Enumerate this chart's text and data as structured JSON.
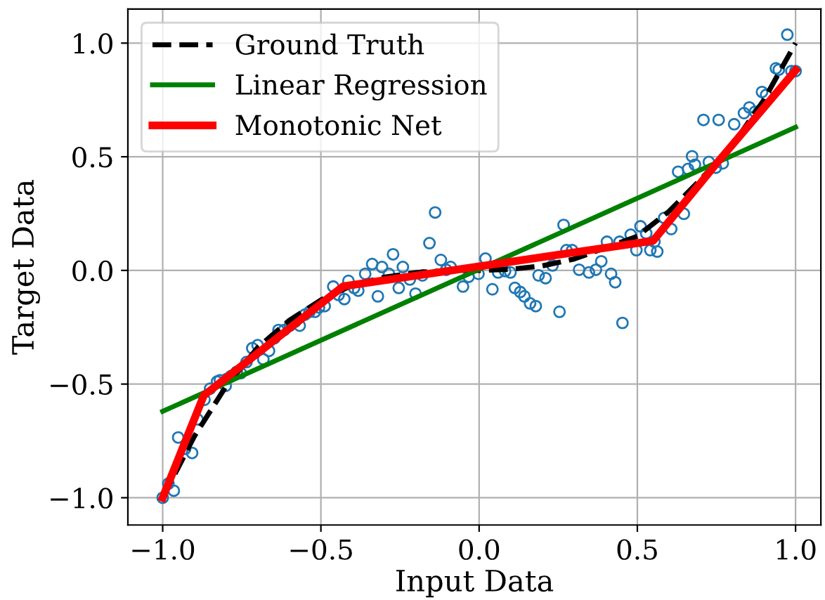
{
  "chart_data": {
    "type": "line",
    "xlabel": "Input Data",
    "ylabel": "Target Data",
    "xlim": [
      -1.11,
      1.08
    ],
    "ylim": [
      -1.12,
      1.15
    ],
    "xticks": [
      {
        "value": -1.0,
        "label": "−1.0"
      },
      {
        "value": -0.5,
        "label": "−0.5"
      },
      {
        "value": 0.0,
        "label": "0.0"
      },
      {
        "value": 0.5,
        "label": "0.5"
      },
      {
        "value": 1.0,
        "label": "1.0"
      }
    ],
    "yticks": [
      {
        "value": -1.0,
        "label": "−1.0"
      },
      {
        "value": -0.5,
        "label": "−0.5"
      },
      {
        "value": 0.0,
        "label": "0.0"
      },
      {
        "value": 0.5,
        "label": "0.5"
      },
      {
        "value": 1.0,
        "label": "1.0"
      }
    ],
    "grid": true,
    "legend": "top left",
    "series": [
      {
        "type": "scatter",
        "marker": "circle",
        "color": "#1f77b4",
        "x": [
          -1.0,
          -0.982,
          -0.965,
          -0.951,
          -0.929,
          -0.907,
          -0.89,
          -0.868,
          -0.85,
          -0.828,
          -0.819,
          -0.801,
          -0.797,
          -0.784,
          -0.766,
          -0.753,
          -0.735,
          -0.717,
          -0.7,
          -0.682,
          -0.664,
          -0.647,
          -0.634,
          -0.616,
          -0.598,
          -0.581,
          -0.567,
          -0.55,
          -0.536,
          -0.519,
          -0.506,
          -0.488,
          -0.461,
          -0.444,
          -0.426,
          -0.413,
          -0.395,
          -0.382,
          -0.36,
          -0.338,
          -0.32,
          -0.307,
          -0.285,
          -0.272,
          -0.254,
          -0.241,
          -0.219,
          -0.201,
          -0.179,
          -0.157,
          -0.139,
          -0.121,
          -0.104,
          -0.09,
          -0.051,
          -0.033,
          -0.002,
          0.02,
          0.042,
          0.06,
          0.082,
          0.099,
          0.113,
          0.13,
          0.143,
          0.161,
          0.179,
          0.188,
          0.21,
          0.232,
          0.254,
          0.267,
          0.276,
          0.294,
          0.316,
          0.347,
          0.369,
          0.386,
          0.404,
          0.417,
          0.43,
          0.444,
          0.453,
          0.479,
          0.497,
          0.51,
          0.528,
          0.541,
          0.554,
          0.563,
          0.585,
          0.607,
          0.629,
          0.647,
          0.66,
          0.673,
          0.682,
          0.709,
          0.726,
          0.748,
          0.757,
          0.77,
          0.806,
          0.837,
          0.854,
          0.872,
          0.894,
          0.907,
          0.938,
          0.947,
          0.974,
          0.987,
          1.0
        ],
        "values": [
          -1.0,
          -0.938,
          -0.969,
          -0.735,
          -0.785,
          -0.803,
          -0.655,
          -0.569,
          -0.52,
          -0.489,
          -0.483,
          -0.508,
          -0.477,
          -0.465,
          -0.446,
          -0.452,
          -0.403,
          -0.342,
          -0.329,
          -0.391,
          -0.354,
          -0.298,
          -0.262,
          -0.262,
          -0.243,
          -0.225,
          -0.243,
          -0.194,
          -0.182,
          -0.182,
          -0.163,
          -0.157,
          -0.071,
          -0.108,
          -0.126,
          -0.046,
          -0.077,
          -0.089,
          -0.015,
          0.028,
          -0.114,
          0.015,
          -0.015,
          0.071,
          -0.077,
          0.015,
          -0.04,
          -0.102,
          -0.022,
          0.12,
          0.255,
          0.046,
          0.003,
          0.015,
          -0.071,
          -0.028,
          -0.015,
          0.052,
          -0.083,
          -0.009,
          -0.003,
          -0.009,
          -0.077,
          -0.095,
          -0.114,
          -0.145,
          -0.157,
          -0.022,
          -0.034,
          0.022,
          -0.182,
          0.2,
          0.089,
          0.089,
          0.003,
          -0.009,
          0.003,
          0.04,
          0.126,
          -0.015,
          -0.052,
          0.126,
          -0.231,
          0.157,
          0.089,
          0.194,
          0.163,
          0.089,
          0.126,
          0.083,
          0.231,
          0.182,
          0.434,
          0.249,
          0.446,
          0.502,
          0.465,
          0.662,
          0.477,
          0.452,
          0.662,
          0.471,
          0.643,
          0.692,
          0.717,
          0.698,
          0.785,
          0.772,
          0.889,
          0.883,
          1.037,
          0.877,
          0.877
        ]
      },
      {
        "name": "Ground Truth",
        "color": "#000000",
        "line_style": "dashed",
        "x": [
          -1.0,
          -0.9,
          -0.8,
          -0.7,
          -0.6,
          -0.5,
          -0.4,
          -0.3,
          -0.2,
          -0.1,
          0.0,
          0.1,
          0.2,
          0.3,
          0.4,
          0.5,
          0.6,
          0.7,
          0.8,
          0.9,
          1.0
        ],
        "values": [
          -1.0,
          -0.73,
          -0.51,
          -0.34,
          -0.22,
          -0.13,
          -0.065,
          -0.03,
          -0.01,
          0.0,
          0.0,
          0.005,
          0.02,
          0.05,
          0.1,
          0.15,
          0.26,
          0.4,
          0.55,
          0.75,
          1.0
        ]
      },
      {
        "name": "Linear Regression",
        "color": "#008000",
        "line_style": "solid",
        "x": [
          -1.0,
          1.0
        ],
        "values": [
          -0.62,
          0.63
        ]
      },
      {
        "name": "Monotonic Net",
        "color": "#ff0000",
        "line_style": "solid",
        "x": [
          -1.0,
          -0.87,
          -0.43,
          0.55,
          0.75,
          1.0
        ],
        "values": [
          -1.0,
          -0.55,
          -0.07,
          0.13,
          0.47,
          0.88
        ]
      }
    ]
  }
}
